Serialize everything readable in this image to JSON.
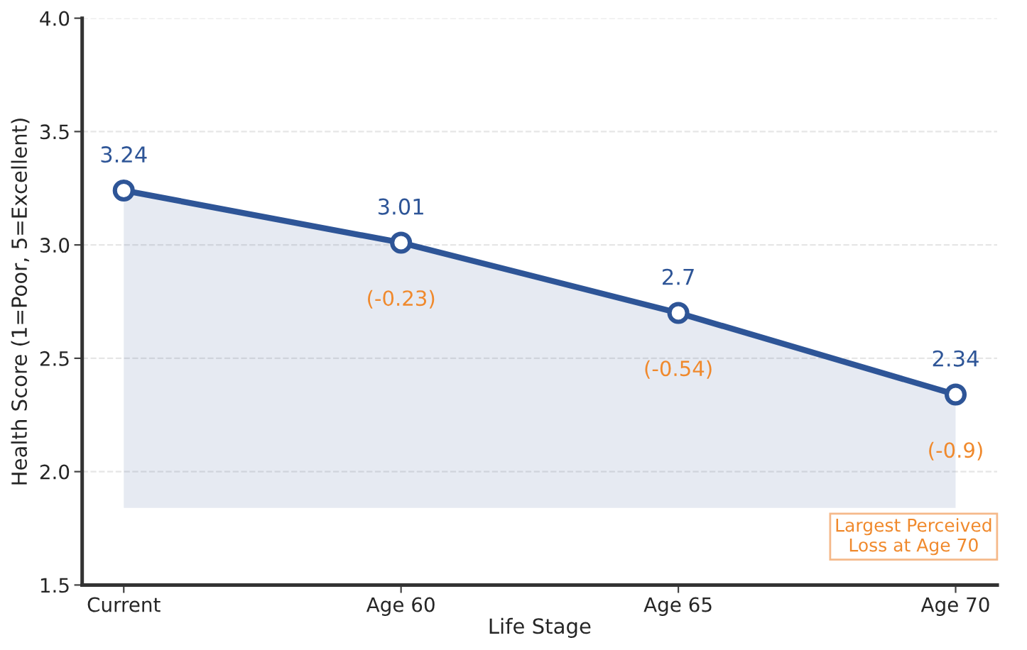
{
  "chart_data": {
    "type": "line",
    "xlabel": "Life Stage",
    "ylabel": "Health Score (1=Poor, 5=Excellent)",
    "categories": [
      "Current",
      "Age 60",
      "Age 65",
      "Age 70"
    ],
    "series": [
      {
        "color": "#2e5597",
        "values": [
          3.24,
          3.01,
          2.7,
          2.34
        ],
        "lower": [
          1.84,
          1.84,
          1.84,
          1.84
        ],
        "upper": [
          3.24,
          3.01,
          2.7,
          2.34
        ]
      }
    ],
    "ylim": [
      1.5,
      4.0
    ],
    "yticks": [
      1.5,
      {
        "value": 2,
        "label": "2.0"
      },
      2.5,
      {
        "value": 3,
        "label": "3.0"
      },
      3.5,
      {
        "value": 4,
        "label": "4.0"
      }
    ],
    "grid": "y",
    "marker": "circle",
    "line_style": "solid",
    "data_labels": true,
    "annotations": [
      {
        "text": "(-0.23)",
        "x": "Age 60",
        "y": 3.01
      },
      {
        "text": "(-0.54)",
        "x": "Age 65",
        "y": 2.7
      },
      {
        "text": "(-0.9)",
        "x": "Age 70",
        "y": 2.34
      },
      "Largest Perceived\nLoss at Age 70"
    ]
  }
}
